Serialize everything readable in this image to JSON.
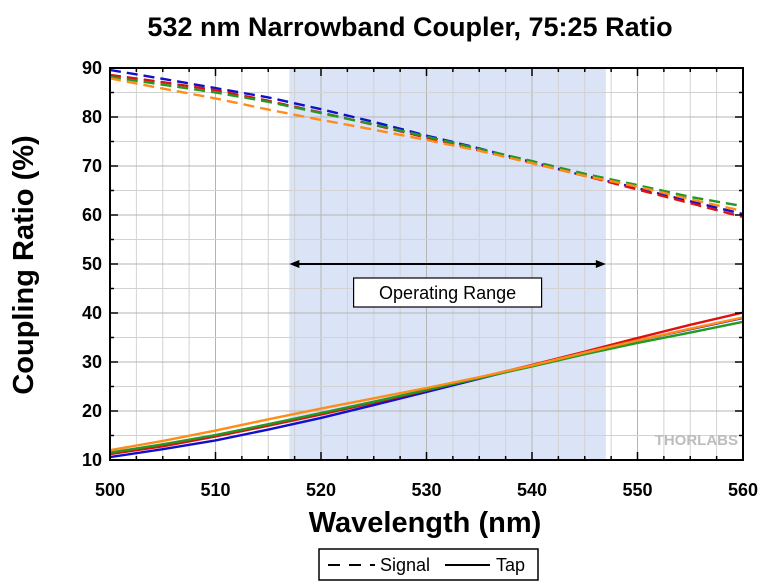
{
  "chart_data": {
    "type": "line",
    "title": "532 nm Narrowband Coupler, 75:25 Ratio",
    "xlabel": "Wavelength (nm)",
    "ylabel": "Coupling Ratio (%)",
    "xlim": [
      500,
      560
    ],
    "ylim": [
      10,
      90
    ],
    "xticks": [
      500,
      510,
      520,
      530,
      540,
      550,
      560
    ],
    "yticks": [
      10,
      20,
      30,
      40,
      50,
      60,
      70,
      80,
      90
    ],
    "grid": true,
    "shaded_region": {
      "x": [
        517,
        547
      ],
      "color": "#dbe3f6"
    },
    "annotation": {
      "text": "Operating Range",
      "x": [
        517,
        547
      ],
      "y": 50
    },
    "watermark": "THORLABS",
    "legend": {
      "placement": "bottom",
      "entries": [
        {
          "label": "Signal",
          "style": "dashed"
        },
        {
          "label": "Tap",
          "style": "solid"
        }
      ]
    },
    "x": [
      500,
      505,
      510,
      515,
      520,
      525,
      530,
      535,
      540,
      545,
      550,
      555,
      560
    ],
    "series": [
      {
        "kind": "signal",
        "color": "#1010cc",
        "style": "dashed",
        "values": [
          89.6,
          87.8,
          85.9,
          84.0,
          81.6,
          79.0,
          76.2,
          73.6,
          70.8,
          68.0,
          65.5,
          62.8,
          60.2
        ]
      },
      {
        "kind": "signal",
        "color": "#dd1111",
        "style": "dashed",
        "values": [
          88.6,
          87.1,
          85.5,
          83.3,
          80.9,
          78.4,
          75.8,
          73.2,
          70.6,
          68.0,
          65.2,
          62.4,
          59.6
        ]
      },
      {
        "kind": "signal",
        "color": "#229922",
        "style": "dashed",
        "values": [
          88.2,
          86.6,
          85.0,
          83.1,
          80.8,
          78.5,
          76.0,
          73.5,
          71.0,
          68.4,
          66.1,
          63.7,
          61.8
        ]
      },
      {
        "kind": "signal",
        "color": "#ff8c1a",
        "style": "dashed",
        "values": [
          87.9,
          85.8,
          83.8,
          81.5,
          79.4,
          77.4,
          75.3,
          73.1,
          70.6,
          68.0,
          65.8,
          63.2,
          60.8
        ]
      },
      {
        "kind": "tap",
        "color": "#1010cc",
        "style": "solid",
        "values": [
          10.6,
          12.2,
          14.0,
          16.2,
          18.6,
          21.2,
          23.9,
          26.6,
          29.3,
          31.9,
          34.4,
          36.7,
          39.0
        ]
      },
      {
        "kind": "tap",
        "color": "#dd1111",
        "style": "solid",
        "values": [
          11.2,
          12.8,
          14.8,
          17.0,
          19.3,
          21.7,
          24.2,
          26.8,
          29.4,
          32.1,
          34.9,
          37.6,
          40.1
        ]
      },
      {
        "kind": "tap",
        "color": "#229922",
        "style": "solid",
        "values": [
          11.5,
          13.2,
          15.1,
          17.3,
          19.6,
          21.9,
          24.3,
          26.7,
          29.1,
          31.6,
          33.9,
          36.0,
          38.2
        ]
      },
      {
        "kind": "tap",
        "color": "#ff8c1a",
        "style": "solid",
        "values": [
          12.0,
          13.9,
          16.0,
          18.3,
          20.5,
          22.6,
          24.7,
          26.9,
          29.3,
          31.9,
          34.4,
          36.8,
          39.1
        ]
      }
    ]
  }
}
